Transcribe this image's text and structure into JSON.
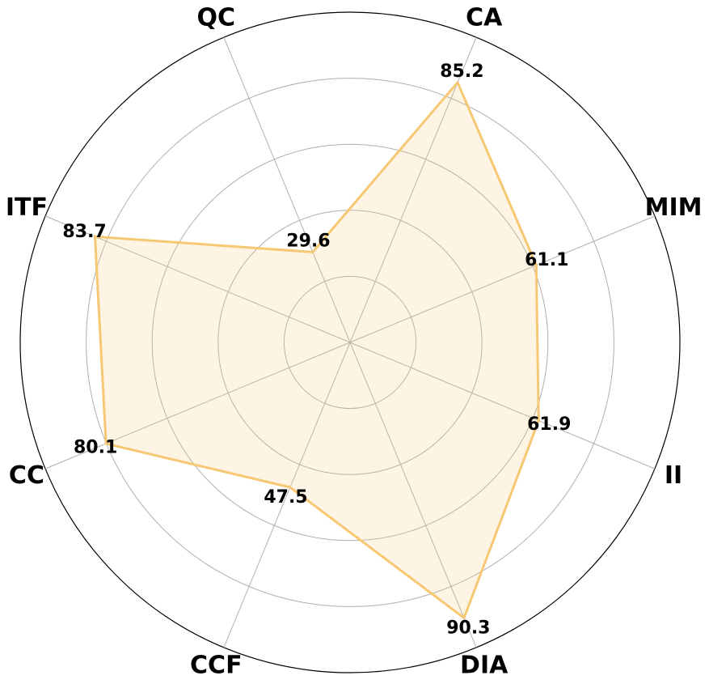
{
  "chart_data": {
    "type": "radar",
    "categories": [
      "CA",
      "MIM",
      "II",
      "DIA",
      "CCF",
      "CC",
      "ITF",
      "QC"
    ],
    "values": [
      85.2,
      61.1,
      61.9,
      90.3,
      47.5,
      80.1,
      83.7,
      29.6
    ],
    "color": "#f7c873",
    "rlim": [
      0,
      100
    ],
    "rticks": [
      20,
      40,
      60,
      80,
      100
    ],
    "grid": true,
    "direction": "clockwise"
  }
}
